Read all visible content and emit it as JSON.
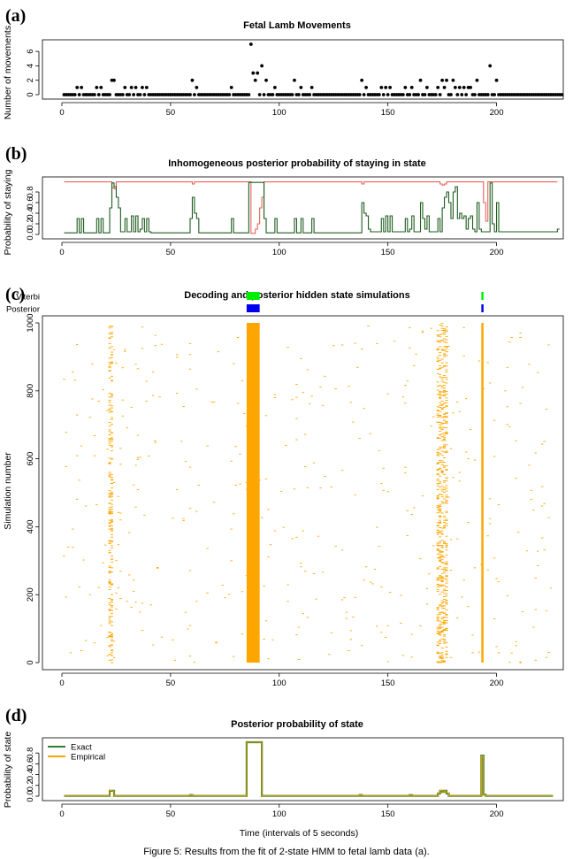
{
  "figure": {
    "caption": "Figure 5: Results from the fit of 2-state HMM to fetal lamb data (a).",
    "xlabel": "Time (intervals of 5 seconds)"
  },
  "chart_data": [
    {
      "panel": "(a)",
      "type": "scatter",
      "title": "Fetal Lamb Movements",
      "ylabel": "Number of movements",
      "xlim": [
        0,
        225
      ],
      "ylim": [
        0,
        7
      ],
      "xticks": [
        0,
        50,
        100,
        150,
        200
      ],
      "yticks": [
        0,
        2,
        4,
        6
      ],
      "color": "#000000",
      "counts": [
        0,
        0,
        0,
        0,
        0,
        0,
        1,
        0,
        1,
        0,
        0,
        0,
        0,
        0,
        0,
        1,
        0,
        1,
        0,
        0,
        0,
        0,
        2,
        2,
        0,
        0,
        0,
        0,
        1,
        0,
        0,
        1,
        0,
        1,
        0,
        0,
        1,
        0,
        1,
        0,
        0,
        0,
        0,
        0,
        0,
        0,
        0,
        0,
        0,
        0,
        0,
        0,
        0,
        0,
        0,
        0,
        0,
        0,
        0,
        2,
        0,
        1,
        0,
        0,
        0,
        0,
        0,
        0,
        0,
        0,
        0,
        0,
        0,
        0,
        0,
        0,
        0,
        1,
        0,
        0,
        0,
        0,
        0,
        0,
        0,
        0,
        7,
        3,
        2,
        3,
        0,
        4,
        0,
        2,
        0,
        0,
        0,
        1,
        0,
        0,
        0,
        0,
        0,
        0,
        0,
        0,
        2,
        0,
        0,
        1,
        0,
        0,
        0,
        0,
        1,
        0,
        0,
        0,
        0,
        0,
        0,
        0,
        0,
        0,
        0,
        0,
        0,
        0,
        0,
        0,
        0,
        0,
        0,
        0,
        0,
        0,
        0,
        2,
        0,
        1,
        0,
        0,
        0,
        0,
        0,
        0,
        1,
        0,
        1,
        0,
        1,
        0,
        0,
        0,
        0,
        0,
        0,
        1,
        0,
        0,
        1,
        0,
        0,
        0,
        2,
        0,
        0,
        1,
        0,
        0,
        0,
        0,
        1,
        0,
        2,
        1,
        2,
        0,
        0,
        2,
        1,
        0,
        1,
        0,
        1,
        0,
        1,
        1,
        0,
        0,
        2,
        0,
        0,
        0,
        0,
        0,
        4,
        0,
        0,
        2,
        0,
        0,
        0,
        0,
        0,
        0,
        0,
        0,
        0,
        0,
        0,
        0,
        0,
        0,
        0,
        0,
        0,
        0,
        0,
        0,
        0,
        0,
        0,
        0,
        0,
        0,
        0,
        0,
        0,
        0
      ]
    },
    {
      "panel": "(b)",
      "type": "line",
      "title": "Inhomogeneous posterior probability of staying in state",
      "ylabel": "Probability of staying",
      "xlim": [
        0,
        225
      ],
      "ylim": [
        0,
        1
      ],
      "xticks": [
        0,
        50,
        100,
        150,
        200
      ],
      "yticks": [
        0.0,
        0.2,
        0.4,
        0.6,
        0.8
      ],
      "series": [
        {
          "color": "#e8625a",
          "values": [
            0.99,
            0.99,
            0.99,
            0.99,
            0.99,
            0.99,
            0.99,
            0.99,
            0.99,
            0.99,
            0.99,
            0.99,
            0.99,
            0.99,
            0.99,
            0.99,
            0.99,
            0.99,
            0.99,
            0.99,
            0.99,
            0.99,
            0.88,
            0.86,
            0.99,
            0.99,
            0.99,
            0.99,
            0.99,
            0.99,
            0.99,
            0.99,
            0.99,
            0.99,
            0.99,
            0.99,
            0.99,
            0.99,
            0.99,
            0.99,
            0.99,
            0.99,
            0.99,
            0.99,
            0.99,
            0.99,
            0.99,
            0.99,
            0.99,
            0.99,
            0.99,
            0.99,
            0.99,
            0.99,
            0.99,
            0.99,
            0.99,
            0.99,
            0.99,
            0.95,
            0.99,
            0.99,
            0.99,
            0.99,
            0.99,
            0.99,
            0.99,
            0.99,
            0.99,
            0.99,
            0.99,
            0.99,
            0.99,
            0.99,
            0.99,
            0.99,
            0.99,
            0.99,
            0.99,
            0.99,
            0.99,
            0.99,
            0.99,
            0.99,
            0.99,
            0.99,
            0.02,
            0.02,
            0.1,
            0.2,
            0.5,
            0.7,
            0.99,
            0.99,
            0.99,
            0.99,
            0.99,
            0.99,
            0.99,
            0.99,
            0.99,
            0.99,
            0.99,
            0.99,
            0.99,
            0.99,
            0.99,
            0.99,
            0.99,
            0.99,
            0.99,
            0.99,
            0.99,
            0.99,
            0.99,
            0.99,
            0.99,
            0.99,
            0.99,
            0.99,
            0.99,
            0.99,
            0.99,
            0.99,
            0.99,
            0.99,
            0.99,
            0.99,
            0.99,
            0.99,
            0.99,
            0.99,
            0.99,
            0.99,
            0.99,
            0.99,
            0.99,
            0.95,
            0.99,
            0.99,
            0.99,
            0.99,
            0.99,
            0.99,
            0.99,
            0.99,
            0.99,
            0.99,
            0.99,
            0.99,
            0.99,
            0.99,
            0.99,
            0.99,
            0.99,
            0.99,
            0.99,
            0.99,
            0.99,
            0.99,
            0.99,
            0.99,
            0.99,
            0.99,
            0.99,
            0.99,
            0.99,
            0.99,
            0.99,
            0.99,
            0.99,
            0.99,
            0.99,
            0.95,
            0.93,
            0.95,
            0.99,
            0.99,
            0.99,
            0.99,
            0.99,
            0.99,
            0.99,
            0.99,
            0.99,
            0.99,
            0.99,
            0.99,
            0.99,
            0.99,
            0.99,
            0.99,
            0.99,
            0.6,
            0.25,
            0.99,
            0.99,
            0.99,
            0.99,
            0.99,
            0.99,
            0.99,
            0.99,
            0.99,
            0.99,
            0.99,
            0.99,
            0.99,
            0.99,
            0.99,
            0.99,
            0.99,
            0.99,
            0.99,
            0.99,
            0.99,
            0.99,
            0.99,
            0.99,
            0.99,
            0.99,
            0.99,
            0.99,
            0.99,
            0.99,
            0.99,
            0.99
          ]
        },
        {
          "color": "#1f5c1f",
          "values": [
            0.03,
            0.03,
            0.03,
            0.03,
            0.03,
            0.03,
            0.3,
            0.03,
            0.3,
            0.03,
            0.03,
            0.03,
            0.03,
            0.03,
            0.03,
            0.3,
            0.03,
            0.3,
            0.03,
            0.03,
            0.03,
            0.5,
            0.97,
            0.9,
            0.7,
            0.5,
            0.05,
            0.05,
            0.3,
            0.05,
            0.05,
            0.35,
            0.05,
            0.35,
            0.05,
            0.1,
            0.3,
            0.05,
            0.3,
            0.05,
            0.03,
            0.03,
            0.03,
            0.03,
            0.03,
            0.03,
            0.03,
            0.03,
            0.03,
            0.03,
            0.03,
            0.03,
            0.03,
            0.03,
            0.03,
            0.03,
            0.03,
            0.03,
            0.3,
            0.7,
            0.4,
            0.3,
            0.03,
            0.03,
            0.03,
            0.03,
            0.03,
            0.03,
            0.03,
            0.03,
            0.03,
            0.03,
            0.03,
            0.03,
            0.03,
            0.03,
            0.03,
            0.3,
            0.03,
            0.03,
            0.03,
            0.03,
            0.03,
            0.03,
            0.03,
            0.98,
            0.98,
            0.98,
            0.98,
            0.98,
            0.98,
            0.98,
            0.3,
            0.03,
            0.03,
            0.03,
            0.03,
            0.3,
            0.03,
            0.03,
            0.03,
            0.03,
            0.03,
            0.03,
            0.03,
            0.03,
            0.3,
            0.03,
            0.03,
            0.3,
            0.03,
            0.03,
            0.03,
            0.03,
            0.3,
            0.03,
            0.03,
            0.03,
            0.03,
            0.03,
            0.03,
            0.03,
            0.03,
            0.03,
            0.03,
            0.03,
            0.03,
            0.03,
            0.03,
            0.03,
            0.03,
            0.03,
            0.03,
            0.03,
            0.03,
            0.03,
            0.03,
            0.6,
            0.4,
            0.35,
            0.1,
            0.05,
            0.05,
            0.05,
            0.05,
            0.05,
            0.3,
            0.05,
            0.35,
            0.05,
            0.35,
            0.05,
            0.05,
            0.05,
            0.05,
            0.05,
            0.05,
            0.3,
            0.05,
            0.1,
            0.35,
            0.05,
            0.05,
            0.05,
            0.6,
            0.3,
            0.1,
            0.35,
            0.05,
            0.05,
            0.05,
            0.05,
            0.3,
            0.05,
            0.5,
            0.7,
            0.8,
            0.6,
            0.3,
            0.8,
            0.9,
            0.3,
            0.4,
            0.3,
            0.35,
            0.1,
            0.3,
            0.35,
            0.1,
            0.05,
            0.6,
            0.1,
            0.05,
            0.05,
            0.05,
            0.05,
            0.97,
            0.2,
            0.05,
            0.6,
            0.05,
            0.05,
            0.05,
            0.05,
            0.05,
            0.05,
            0.05,
            0.05,
            0.05,
            0.05,
            0.05,
            0.05,
            0.05,
            0.05,
            0.05,
            0.05,
            0.05,
            0.05,
            0.05,
            0.05,
            0.05,
            0.05,
            0.05,
            0.05,
            0.05,
            0.05,
            0.05,
            0.1
          ]
        }
      ]
    },
    {
      "panel": "(c)",
      "type": "raster",
      "title": "Decoding and posterior hidden state simulations",
      "ylabel": "Simulation number",
      "xlim": [
        0,
        225
      ],
      "ylim": [
        0,
        1000
      ],
      "xticks": [
        0,
        50,
        100,
        150,
        200
      ],
      "yticks": [
        0,
        200,
        400,
        600,
        800,
        1000
      ],
      "row_labels": [
        "Viterbi",
        "Posterior"
      ],
      "row_colors": [
        "#00ee00",
        "#0000ee"
      ],
      "viterbi_segments": [
        [
          85,
          91
        ],
        [
          193,
          194
        ]
      ],
      "posterior_segments": [
        [
          85,
          91
        ],
        [
          193,
          194
        ]
      ],
      "sim_color": "#ffa500",
      "sim_dense_columns": [
        [
          85,
          91
        ],
        [
          193,
          194
        ]
      ],
      "sim_frequent_columns": [
        22,
        23,
        173,
        174,
        175,
        176,
        177
      ]
    },
    {
      "panel": "(d)",
      "type": "line",
      "title": "Posterior probability of state",
      "ylabel": "Probability of state",
      "xlim": [
        0,
        225
      ],
      "ylim": [
        0,
        1
      ],
      "xticks": [
        0,
        50,
        100,
        150,
        200
      ],
      "yticks": [
        0.0,
        0.2,
        0.4,
        0.6,
        0.8
      ],
      "legend_position": "top-left",
      "series": [
        {
          "name": "Exact",
          "color": "#2e7d32",
          "peaks": [
            [
              22,
              0.1
            ],
            [
              23,
              0.1
            ],
            [
              59,
              0.02
            ],
            [
              85,
              1.0
            ],
            [
              86,
              1.0
            ],
            [
              87,
              1.0
            ],
            [
              88,
              1.0
            ],
            [
              89,
              1.0
            ],
            [
              90,
              1.0
            ],
            [
              91,
              1.0
            ],
            [
              137,
              0.02
            ],
            [
              160,
              0.02
            ],
            [
              173,
              0.05
            ],
            [
              174,
              0.1
            ],
            [
              175,
              0.08
            ],
            [
              176,
              0.1
            ],
            [
              177,
              0.05
            ],
            [
              193,
              0.75
            ],
            [
              194,
              0.03
            ]
          ]
        },
        {
          "name": "Empirical",
          "color": "#ffa500",
          "peaks": [
            [
              22,
              0.11
            ],
            [
              23,
              0.1
            ],
            [
              59,
              0.02
            ],
            [
              85,
              1.0
            ],
            [
              86,
              1.0
            ],
            [
              87,
              1.0
            ],
            [
              88,
              1.0
            ],
            [
              89,
              1.0
            ],
            [
              90,
              1.0
            ],
            [
              91,
              1.0
            ],
            [
              137,
              0.02
            ],
            [
              160,
              0.02
            ],
            [
              173,
              0.06
            ],
            [
              174,
              0.11
            ],
            [
              175,
              0.08
            ],
            [
              176,
              0.1
            ],
            [
              177,
              0.06
            ],
            [
              193,
              0.74
            ],
            [
              194,
              0.03
            ]
          ]
        }
      ]
    }
  ]
}
